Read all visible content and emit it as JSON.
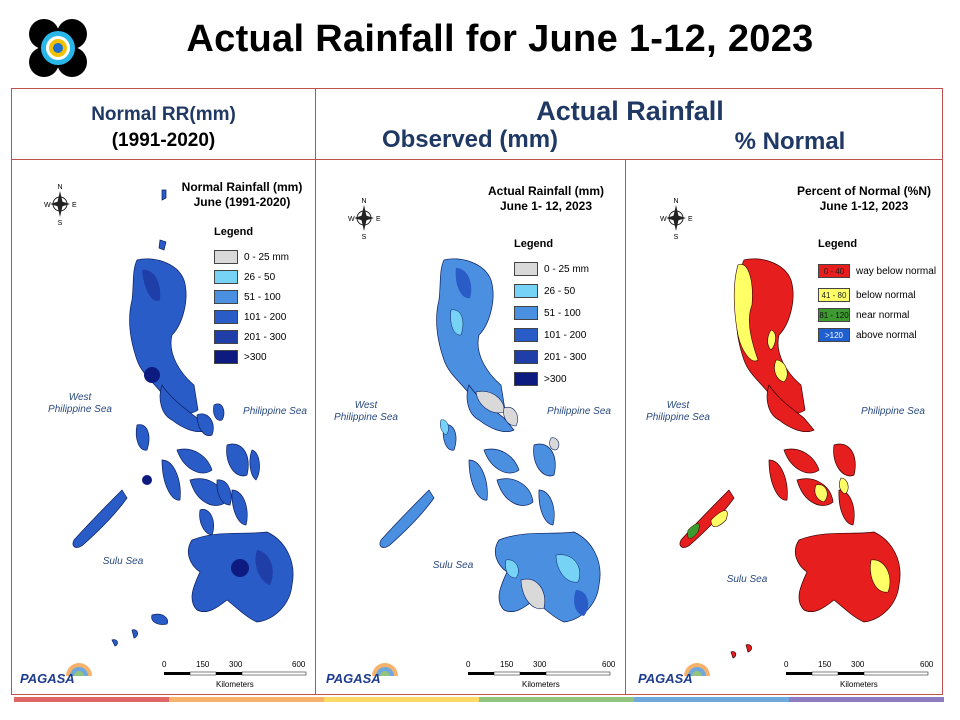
{
  "title": "Actual Rainfall for June 1-12, 2023",
  "headers": {
    "normal_line1": "Normal RR(mm)",
    "normal_line2": "(1991-2020)",
    "actual": "Actual Rainfall",
    "observed": "Observed (mm)",
    "percent": "% Normal"
  },
  "panels": [
    {
      "title_line1": "Normal Rainfall (mm)",
      "title_line2": "June (1991-2020)",
      "legend_title": "Legend",
      "legend": [
        {
          "label": "0 - 25 mm",
          "color": "#d9d9d9"
        },
        {
          "label": "26 - 50",
          "color": "#76d3f5"
        },
        {
          "label": "51 - 100",
          "color": "#4a8fe0"
        },
        {
          "label": "101 - 200",
          "color": "#2a5cc8"
        },
        {
          "label": "201 - 300",
          "color": "#1f3ea8"
        },
        {
          "label": ">300",
          "color": "#0d1a80"
        }
      ],
      "sea_west_line1": "West",
      "sea_west_line2": "Philippine Sea",
      "sea_east": "Philippine Sea",
      "sea_south": "Sulu Sea"
    },
    {
      "title_line1": "Actual Rainfall (mm)",
      "title_line2": "June 1- 12, 2023",
      "legend_title": "Legend",
      "legend": [
        {
          "label": "0 - 25 mm",
          "color": "#d9d9d9"
        },
        {
          "label": "26 - 50",
          "color": "#76d3f5"
        },
        {
          "label": "51 - 100",
          "color": "#4a8fe0"
        },
        {
          "label": "101 - 200",
          "color": "#2a5cc8"
        },
        {
          "label": "201 - 300",
          "color": "#1f3ea8"
        },
        {
          "label": ">300",
          "color": "#0d1a80"
        }
      ],
      "sea_west_line1": "West",
      "sea_west_line2": "Philippine Sea",
      "sea_east": "Philippine Sea",
      "sea_south": "Sulu Sea"
    },
    {
      "title_line1": "Percent of Normal (%N)",
      "title_line2": "June 1-12, 2023",
      "legend_title": "Legend",
      "legend": [
        {
          "swatch": "0 - 40",
          "label": "way below normal",
          "color": "#e61e1e"
        },
        {
          "swatch": "41 - 80",
          "label": "below normal",
          "color": "#ffff66"
        },
        {
          "swatch": "81 - 120",
          "label": "near normal",
          "color": "#3c9a2e"
        },
        {
          "swatch": ">120",
          "label": "above normal",
          "color": "#1f5fd0"
        }
      ],
      "sea_west_line1": "West",
      "sea_west_line2": "Philippine Sea",
      "sea_east": "Philippine Sea",
      "sea_south": "Sulu Sea"
    }
  ],
  "scale": {
    "t0": "0",
    "t150": "150",
    "t300": "300",
    "t600": "600",
    "unit": "Kilometers"
  },
  "compass": {
    "n": "N",
    "s": "S",
    "e": "E",
    "w": "W"
  },
  "logo_text": "PAGASA",
  "colors": {
    "frame": "#c0504d",
    "header_text": "#1f3864",
    "bar": [
      "#e06666",
      "#f6b26b",
      "#ffd966",
      "#93c47d",
      "#6fa8dc",
      "#8e7cc3"
    ]
  }
}
